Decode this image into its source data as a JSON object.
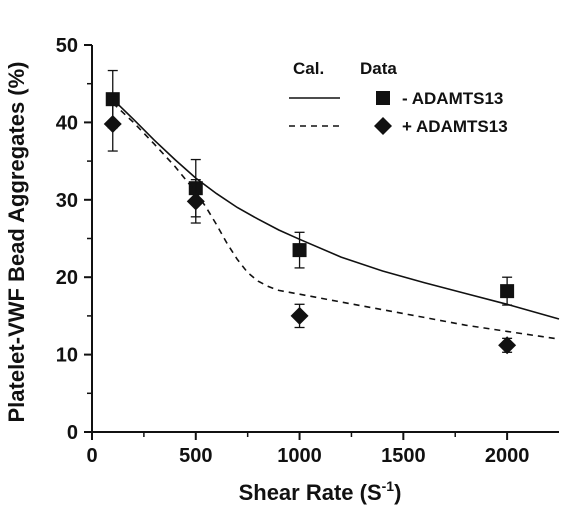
{
  "chart_data": {
    "type": "scatter",
    "xlabel": "Shear Rate (S",
    "xlabel_sup": "-1",
    "xlabel_close": ")",
    "ylabel": "Platelet-VWF Bead Aggregates (%)",
    "xlim": [
      0,
      2250
    ],
    "ylim": [
      0,
      50
    ],
    "x_ticks": [
      0,
      500,
      1000,
      1500,
      2000
    ],
    "y_ticks": [
      0,
      10,
      20,
      30,
      40,
      50
    ],
    "legend": {
      "placement": "top-right",
      "header_calc": "Cal.",
      "header_data": "Data"
    },
    "series": [
      {
        "name": "- ADAMTS13",
        "marker": "square",
        "line_style": "solid",
        "points": [
          {
            "x": 100,
            "y": 43.0,
            "err": 3.7
          },
          {
            "x": 500,
            "y": 31.5,
            "err": 3.7
          },
          {
            "x": 1000,
            "y": 23.5,
            "err": 2.3
          },
          {
            "x": 2000,
            "y": 18.2,
            "err": 1.8
          }
        ],
        "calc_curve": [
          [
            100,
            43.0
          ],
          [
            200,
            40.4
          ],
          [
            300,
            37.7
          ],
          [
            400,
            35.2
          ],
          [
            500,
            32.8
          ],
          [
            600,
            30.8
          ],
          [
            700,
            29.0
          ],
          [
            800,
            27.5
          ],
          [
            900,
            26.1
          ],
          [
            1000,
            24.9
          ],
          [
            1200,
            22.6
          ],
          [
            1400,
            20.8
          ],
          [
            1600,
            19.3
          ],
          [
            1800,
            17.9
          ],
          [
            2000,
            16.5
          ],
          [
            2250,
            14.6
          ]
        ]
      },
      {
        "name": "+ ADAMTS13",
        "marker": "diamond",
        "line_style": "dashed",
        "points": [
          {
            "x": 100,
            "y": 39.8,
            "err": 3.5
          },
          {
            "x": 500,
            "y": 29.8,
            "err": 2.8
          },
          {
            "x": 1000,
            "y": 15.0,
            "err": 1.5
          },
          {
            "x": 2000,
            "y": 11.2,
            "err": 0.9
          }
        ],
        "calc_curve": [
          [
            100,
            42.5
          ],
          [
            200,
            40.0
          ],
          [
            300,
            37.2
          ],
          [
            400,
            34.3
          ],
          [
            500,
            31.0
          ],
          [
            550,
            29.0
          ],
          [
            600,
            26.8
          ],
          [
            650,
            24.4
          ],
          [
            700,
            22.3
          ],
          [
            750,
            20.6
          ],
          [
            800,
            19.5
          ],
          [
            850,
            18.8
          ],
          [
            900,
            18.3
          ],
          [
            1000,
            17.8
          ],
          [
            1200,
            16.8
          ],
          [
            1400,
            15.8
          ],
          [
            1600,
            14.8
          ],
          [
            1800,
            13.8
          ],
          [
            2000,
            13.0
          ],
          [
            2250,
            12.0
          ]
        ]
      }
    ]
  }
}
